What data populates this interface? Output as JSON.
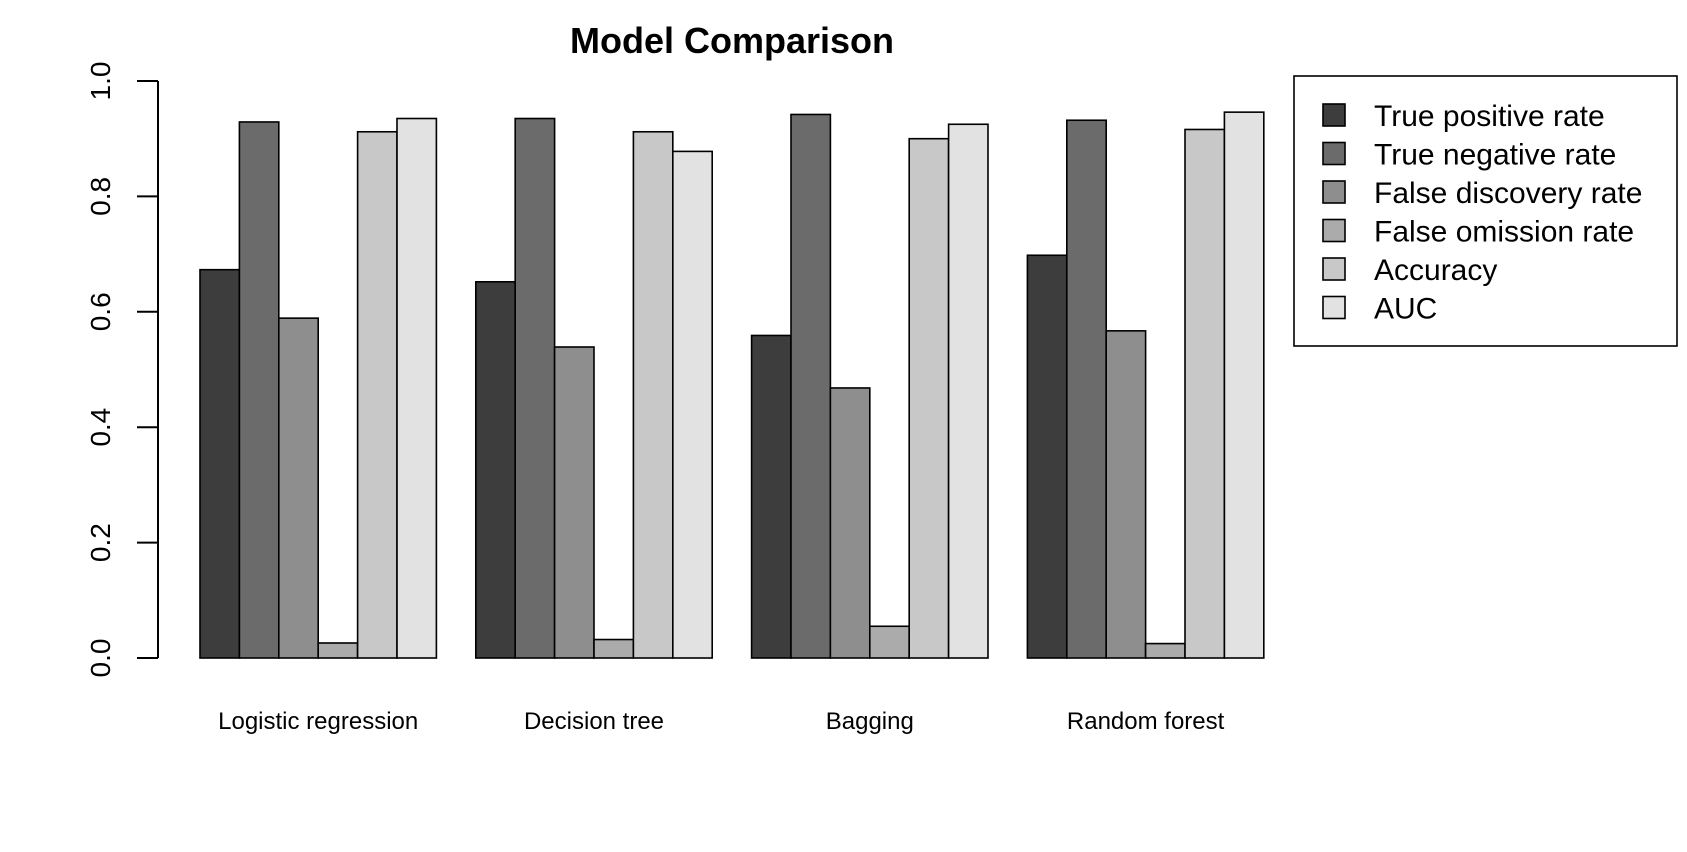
{
  "chart_data": {
    "type": "bar",
    "title": "Model Comparison",
    "xlabel": "",
    "ylabel": "",
    "ylim": [
      0,
      1
    ],
    "yticks": [
      "0.0",
      "0.2",
      "0.4",
      "0.6",
      "0.8",
      "1.0"
    ],
    "ytick_values": [
      0,
      0.2,
      0.4,
      0.6,
      0.8,
      1.0
    ],
    "grid": false,
    "legend_position": "top-right",
    "categories": [
      "Logistic regression",
      "Decision tree",
      "Bagging",
      "Random forest"
    ],
    "series": [
      {
        "name": "True positive rate",
        "color": "#3d3d3d",
        "values": [
          0.673,
          0.652,
          0.559,
          0.698
        ]
      },
      {
        "name": "True negative rate",
        "color": "#6b6b6b",
        "values": [
          0.929,
          0.935,
          0.942,
          0.932
        ]
      },
      {
        "name": "False discovery rate",
        "color": "#8e8e8e",
        "values": [
          0.589,
          0.539,
          0.468,
          0.567
        ]
      },
      {
        "name": "False omission rate",
        "color": "#ababab",
        "values": [
          0.026,
          0.032,
          0.055,
          0.025
        ]
      },
      {
        "name": "Accuracy",
        "color": "#c8c8c8",
        "values": [
          0.912,
          0.912,
          0.9,
          0.916
        ]
      },
      {
        "name": "AUC",
        "color": "#e2e2e2",
        "values": [
          0.935,
          0.878,
          0.925,
          0.946
        ]
      }
    ]
  }
}
